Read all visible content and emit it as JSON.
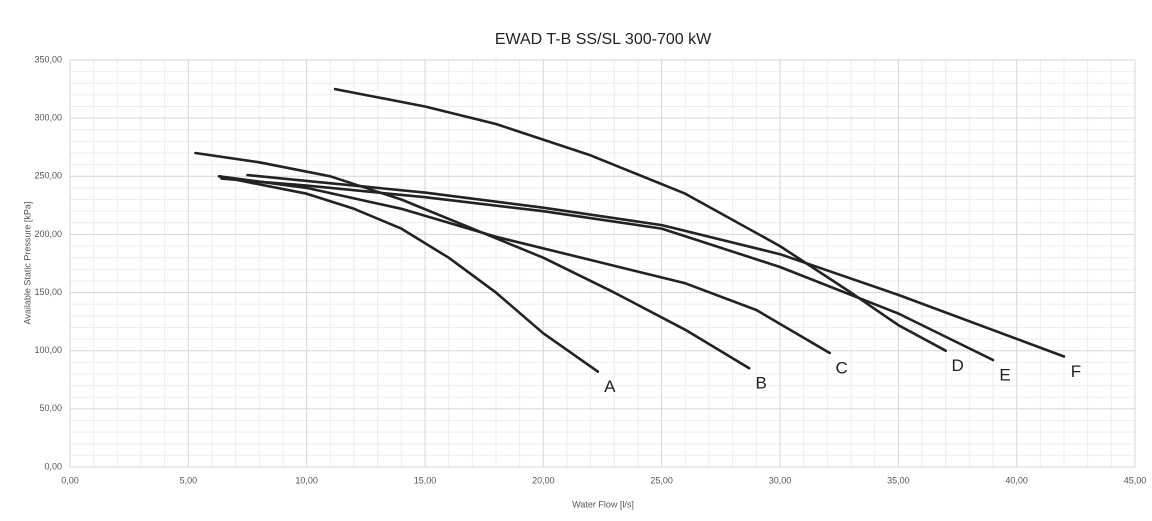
{
  "chart_data": {
    "type": "line",
    "title": "EWAD T-B SS/SL 300-700 kW",
    "x_label": "Water Flow [l/s]",
    "y_label": "Available Static Pressure [kPa]",
    "xlim": [
      0,
      45
    ],
    "ylim": [
      0,
      350
    ],
    "xticks": [
      {
        "value": 0,
        "label": "0,00"
      },
      {
        "value": 5,
        "label": "5,00"
      },
      {
        "value": 10,
        "label": "10,00"
      },
      {
        "value": 15,
        "label": "15,00"
      },
      {
        "value": 20,
        "label": "20,00"
      },
      {
        "value": 25,
        "label": "25,00"
      },
      {
        "value": 30,
        "label": "30,00"
      },
      {
        "value": 35,
        "label": "35,00"
      },
      {
        "value": 40,
        "label": "40,00"
      },
      {
        "value": 45,
        "label": "45,00"
      }
    ],
    "yticks": [
      {
        "value": 0,
        "label": "0,00"
      },
      {
        "value": 50,
        "label": "50,00"
      },
      {
        "value": 100,
        "label": "100,00"
      },
      {
        "value": 150,
        "label": "150,00"
      },
      {
        "value": 200,
        "label": "200,00"
      },
      {
        "value": 250,
        "label": "250,00"
      },
      {
        "value": 300,
        "label": "300,00"
      },
      {
        "value": 350,
        "label": "350,00"
      }
    ],
    "grid": true,
    "minor_grid": true,
    "series": [
      {
        "name": "A",
        "color": "#222222",
        "x": [
          6.3,
          8,
          10,
          12,
          14,
          16,
          18,
          20,
          22.3
        ],
        "values": [
          250,
          243,
          235,
          222,
          205,
          180,
          150,
          115,
          82
        ]
      },
      {
        "name": "B",
        "color": "#222222",
        "x": [
          5.3,
          8,
          11,
          14,
          17,
          20,
          23,
          26,
          28.7
        ],
        "values": [
          270,
          262,
          250,
          230,
          205,
          180,
          150,
          118,
          85
        ]
      },
      {
        "name": "C",
        "color": "#222222",
        "x": [
          6.3,
          10,
          14,
          18,
          22,
          26,
          29,
          32.1
        ],
        "values": [
          250,
          240,
          222,
          198,
          178,
          158,
          135,
          98
        ]
      },
      {
        "name": "D",
        "color": "#222222",
        "x": [
          11.2,
          15,
          18,
          22,
          26,
          30,
          33,
          35,
          37
        ],
        "values": [
          325,
          310,
          295,
          268,
          235,
          190,
          150,
          122,
          100
        ]
      },
      {
        "name": "E",
        "color": "#222222",
        "x": [
          6.4,
          10,
          15,
          20,
          25,
          30,
          35,
          39
        ],
        "values": [
          248,
          242,
          232,
          220,
          205,
          172,
          132,
          92
        ]
      },
      {
        "name": "F",
        "color": "#222222",
        "x": [
          7.5,
          10,
          15,
          20,
          25,
          30,
          35,
          42
        ],
        "values": [
          251,
          246,
          236,
          223,
          208,
          183,
          148,
          95
        ]
      }
    ]
  }
}
